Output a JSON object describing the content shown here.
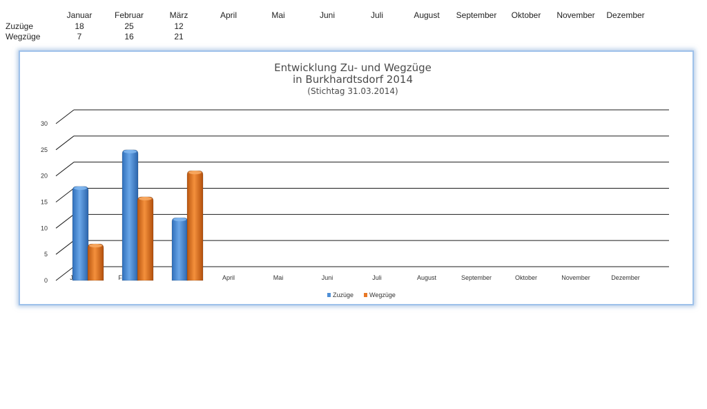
{
  "table": {
    "months": [
      "Januar",
      "Februar",
      "März",
      "April",
      "Mai",
      "Juni",
      "Juli",
      "August",
      "September",
      "Oktober",
      "November",
      "Dezember"
    ],
    "rows": [
      {
        "label": "Zuzüge",
        "values": [
          "18",
          "25",
          "12"
        ]
      },
      {
        "label": "Wegzüge",
        "values": [
          "7",
          "16",
          "21"
        ]
      }
    ]
  },
  "chart_data": {
    "type": "bar",
    "title": "Entwicklung Zu- und Wegzüge",
    "subtitle": "in Burkhardtsdorf 2014",
    "subtitle2": "(Stichtag 31.03.2014)",
    "categories": [
      "Januar",
      "Februar",
      "März",
      "April",
      "Mai",
      "Juni",
      "Juli",
      "August",
      "September",
      "Oktober",
      "November",
      "Dezember"
    ],
    "series": [
      {
        "name": "Zuzüge",
        "values": [
          18,
          25,
          12,
          null,
          null,
          null,
          null,
          null,
          null,
          null,
          null,
          null
        ],
        "color": "#4f8fd6"
      },
      {
        "name": "Wegzüge",
        "values": [
          7,
          16,
          21,
          null,
          null,
          null,
          null,
          null,
          null,
          null,
          null,
          null
        ],
        "color": "#e87826"
      }
    ],
    "yticks": [
      "0",
      "5",
      "10",
      "15",
      "20",
      "25",
      "30"
    ],
    "ylim": [
      0,
      30
    ],
    "grid": true,
    "legend": "bottom"
  }
}
